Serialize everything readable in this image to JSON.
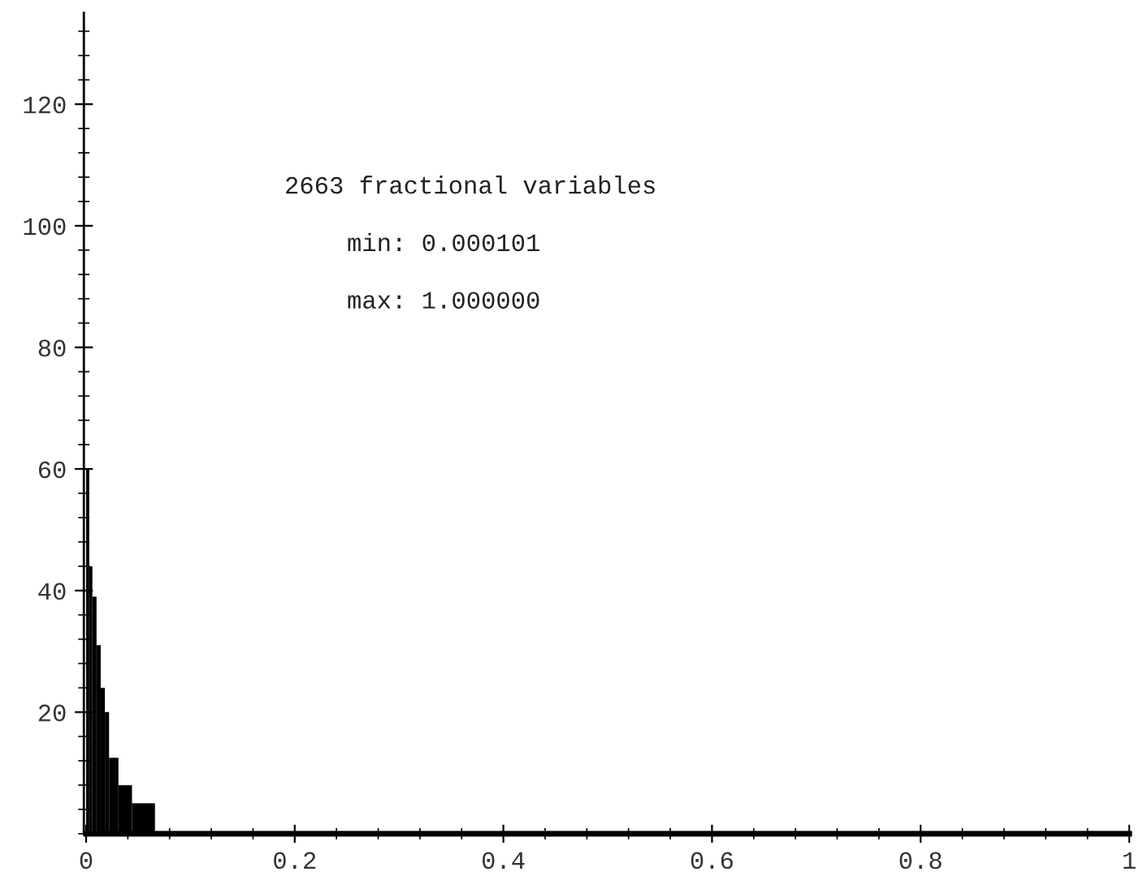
{
  "chart_data": {
    "type": "histogram",
    "bins": [
      0,
      0.003,
      0.006,
      0.01,
      0.014,
      0.018,
      0.022,
      0.031,
      0.044,
      0.066
    ],
    "values": [
      60,
      44,
      39,
      31,
      24,
      20,
      12.5,
      8,
      5
    ],
    "color": "#000000",
    "xlim": [
      0,
      1
    ],
    "ylim": [
      0,
      135
    ],
    "xticks": [
      0,
      0.2,
      0.4,
      0.6,
      0.8,
      1
    ],
    "yticks": [
      20,
      40,
      60,
      80,
      100,
      120
    ],
    "grid": false,
    "annotations": [
      "2663 fractional variables",
      "min: 0.000101",
      "max: 1.000000"
    ]
  }
}
